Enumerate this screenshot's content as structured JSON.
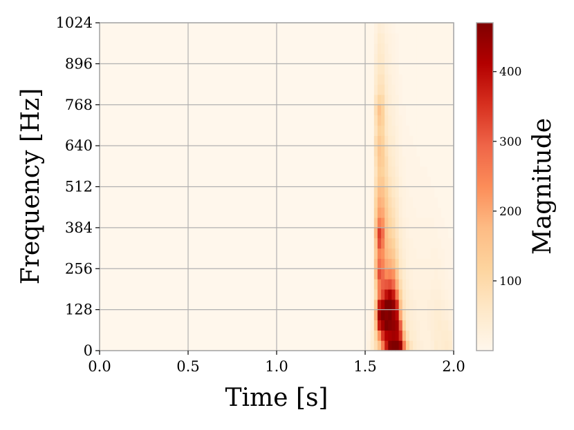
{
  "chart_data": {
    "type": "heatmap",
    "title": "",
    "xlabel": "Time [s]",
    "ylabel": "Frequency [Hz]",
    "colorbar_label": "Magnitude",
    "colormap": "OrRd",
    "colormap_stops": [
      "#fff7ec",
      "#fee8c8",
      "#fdd49e",
      "#fdbb84",
      "#fc8d59",
      "#ef6548",
      "#d7301f",
      "#b30000",
      "#7f0000"
    ],
    "xlim": [
      0.0,
      2.0
    ],
    "ylim": [
      0,
      1024
    ],
    "x_ticks": [
      "0.0",
      "0.5",
      "1.0",
      "1.5",
      "2.0"
    ],
    "y_ticks": [
      "0",
      "128",
      "256",
      "384",
      "512",
      "640",
      "768",
      "896",
      "1024"
    ],
    "color_range": [
      0,
      470
    ],
    "colorbar_ticks": [
      "100",
      "200",
      "300",
      "400"
    ],
    "grid": true,
    "time_bins": [
      1.5,
      1.52,
      1.54,
      1.56,
      1.58,
      1.6,
      1.62,
      1.64,
      1.66,
      1.68,
      1.7,
      1.72,
      1.74,
      1.76,
      1.78,
      1.8,
      1.82,
      1.84,
      1.86,
      1.88,
      1.9,
      1.92,
      1.94,
      1.96,
      1.98
    ],
    "freq_bins": [
      16,
      48,
      80,
      112,
      144,
      176,
      208,
      240,
      272,
      304,
      336,
      368,
      400,
      432,
      464,
      496,
      528,
      560,
      592,
      624,
      656,
      688,
      720,
      752,
      784,
      816,
      848,
      880,
      912,
      944,
      976,
      1008
    ],
    "magnitude": [
      [
        10,
        20,
        45,
        90,
        160,
        260,
        380,
        460,
        470,
        470,
        440,
        260,
        120,
        70,
        45,
        35,
        30,
        25,
        25,
        30,
        45,
        40,
        45,
        50,
        45
      ],
      [
        10,
        15,
        40,
        110,
        230,
        350,
        410,
        420,
        430,
        420,
        350,
        180,
        80,
        45,
        40,
        30,
        25,
        25,
        25,
        35,
        40,
        40,
        45,
        45,
        40
      ],
      [
        5,
        10,
        30,
        160,
        380,
        430,
        470,
        460,
        450,
        430,
        300,
        110,
        50,
        40,
        35,
        30,
        25,
        25,
        30,
        35,
        40,
        45,
        40,
        40,
        30
      ],
      [
        5,
        10,
        25,
        190,
        430,
        470,
        460,
        470,
        440,
        400,
        200,
        80,
        45,
        35,
        30,
        25,
        25,
        25,
        30,
        35,
        40,
        40,
        35,
        30,
        25
      ],
      [
        5,
        5,
        20,
        150,
        380,
        420,
        470,
        470,
        450,
        360,
        160,
        70,
        45,
        35,
        30,
        25,
        25,
        25,
        30,
        30,
        35,
        35,
        30,
        25,
        20
      ],
      [
        5,
        5,
        15,
        100,
        260,
        330,
        390,
        420,
        380,
        260,
        120,
        60,
        40,
        30,
        25,
        25,
        25,
        25,
        25,
        30,
        30,
        30,
        25,
        20,
        15
      ],
      [
        5,
        5,
        15,
        120,
        260,
        300,
        310,
        320,
        290,
        190,
        90,
        50,
        35,
        25,
        20,
        20,
        20,
        20,
        20,
        25,
        25,
        25,
        20,
        15,
        15
      ],
      [
        5,
        5,
        10,
        170,
        320,
        290,
        240,
        250,
        230,
        150,
        70,
        45,
        30,
        25,
        20,
        20,
        20,
        20,
        20,
        20,
        25,
        20,
        20,
        15,
        10
      ],
      [
        5,
        5,
        10,
        160,
        280,
        250,
        200,
        190,
        170,
        110,
        55,
        40,
        25,
        20,
        20,
        20,
        20,
        20,
        20,
        20,
        20,
        20,
        15,
        10,
        10
      ],
      [
        5,
        5,
        10,
        140,
        250,
        230,
        180,
        160,
        140,
        90,
        50,
        35,
        25,
        20,
        20,
        15,
        15,
        15,
        15,
        20,
        20,
        15,
        15,
        10,
        10
      ],
      [
        5,
        5,
        10,
        150,
        320,
        260,
        170,
        140,
        120,
        80,
        45,
        30,
        25,
        20,
        15,
        15,
        15,
        15,
        15,
        15,
        15,
        15,
        10,
        10,
        10
      ],
      [
        5,
        5,
        10,
        180,
        340,
        280,
        160,
        120,
        100,
        70,
        40,
        30,
        20,
        15,
        15,
        15,
        15,
        15,
        15,
        15,
        15,
        10,
        10,
        10,
        5
      ],
      [
        5,
        5,
        10,
        140,
        260,
        230,
        150,
        110,
        90,
        60,
        35,
        25,
        20,
        15,
        15,
        15,
        15,
        15,
        15,
        15,
        10,
        10,
        10,
        5,
        5
      ],
      [
        5,
        5,
        10,
        120,
        210,
        200,
        140,
        100,
        80,
        55,
        30,
        20,
        15,
        15,
        15,
        10,
        10,
        10,
        10,
        10,
        10,
        10,
        5,
        5,
        5
      ],
      [
        5,
        5,
        10,
        110,
        190,
        180,
        130,
        90,
        70,
        50,
        30,
        20,
        15,
        15,
        10,
        10,
        10,
        10,
        10,
        10,
        10,
        5,
        5,
        5,
        5
      ],
      [
        5,
        5,
        10,
        100,
        170,
        160,
        120,
        80,
        60,
        45,
        25,
        20,
        15,
        10,
        10,
        10,
        10,
        10,
        10,
        10,
        5,
        5,
        5,
        5,
        5
      ],
      [
        5,
        5,
        5,
        80,
        140,
        140,
        100,
        70,
        55,
        40,
        25,
        15,
        10,
        10,
        10,
        10,
        10,
        10,
        10,
        5,
        5,
        5,
        5,
        5,
        5
      ],
      [
        5,
        5,
        5,
        70,
        130,
        120,
        90,
        60,
        50,
        35,
        20,
        15,
        10,
        10,
        10,
        10,
        10,
        10,
        5,
        5,
        5,
        5,
        5,
        5,
        5
      ],
      [
        5,
        5,
        5,
        80,
        140,
        130,
        90,
        55,
        45,
        30,
        20,
        15,
        10,
        10,
        10,
        10,
        5,
        5,
        5,
        5,
        5,
        5,
        5,
        5,
        5
      ],
      [
        5,
        5,
        5,
        90,
        150,
        130,
        80,
        50,
        40,
        30,
        20,
        10,
        10,
        10,
        10,
        5,
        5,
        5,
        5,
        5,
        5,
        5,
        5,
        5,
        5
      ],
      [
        5,
        5,
        5,
        90,
        140,
        120,
        70,
        45,
        40,
        25,
        15,
        10,
        10,
        10,
        5,
        5,
        5,
        5,
        5,
        5,
        5,
        5,
        5,
        5,
        5
      ],
      [
        5,
        5,
        5,
        70,
        120,
        110,
        60,
        40,
        35,
        25,
        15,
        10,
        10,
        5,
        5,
        5,
        5,
        5,
        5,
        5,
        5,
        5,
        5,
        5,
        5
      ],
      [
        5,
        5,
        5,
        80,
        140,
        120,
        60,
        40,
        30,
        20,
        15,
        10,
        5,
        5,
        5,
        5,
        5,
        5,
        5,
        5,
        5,
        5,
        5,
        5,
        5
      ],
      [
        5,
        5,
        5,
        90,
        160,
        120,
        55,
        35,
        30,
        20,
        10,
        10,
        5,
        5,
        5,
        5,
        5,
        5,
        5,
        5,
        5,
        5,
        5,
        5,
        5
      ],
      [
        5,
        5,
        5,
        70,
        110,
        100,
        50,
        35,
        25,
        20,
        10,
        5,
        5,
        5,
        5,
        5,
        5,
        5,
        5,
        5,
        5,
        5,
        5,
        5,
        5
      ],
      [
        5,
        5,
        5,
        50,
        80,
        80,
        45,
        30,
        25,
        15,
        10,
        5,
        5,
        5,
        5,
        5,
        5,
        5,
        5,
        5,
        5,
        5,
        5,
        5,
        5
      ],
      [
        5,
        5,
        5,
        45,
        70,
        70,
        40,
        30,
        20,
        15,
        10,
        5,
        5,
        5,
        5,
        5,
        5,
        5,
        5,
        5,
        5,
        5,
        5,
        5,
        5
      ],
      [
        5,
        5,
        5,
        40,
        60,
        60,
        35,
        25,
        20,
        15,
        5,
        5,
        5,
        5,
        5,
        5,
        5,
        5,
        5,
        5,
        5,
        5,
        5,
        5,
        5
      ],
      [
        5,
        5,
        5,
        35,
        55,
        50,
        30,
        25,
        15,
        10,
        5,
        5,
        5,
        5,
        5,
        5,
        5,
        5,
        5,
        5,
        5,
        5,
        5,
        5,
        5
      ],
      [
        5,
        5,
        5,
        30,
        50,
        45,
        30,
        20,
        15,
        10,
        5,
        5,
        5,
        5,
        5,
        5,
        5,
        5,
        5,
        5,
        5,
        5,
        5,
        5,
        5
      ],
      [
        5,
        5,
        5,
        25,
        45,
        40,
        25,
        20,
        15,
        10,
        5,
        5,
        5,
        5,
        5,
        5,
        5,
        5,
        5,
        5,
        5,
        5,
        5,
        5,
        5
      ],
      [
        5,
        5,
        5,
        20,
        35,
        30,
        20,
        15,
        10,
        5,
        5,
        5,
        5,
        5,
        5,
        5,
        5,
        5,
        5,
        5,
        5,
        5,
        5,
        5,
        5
      ]
    ]
  }
}
